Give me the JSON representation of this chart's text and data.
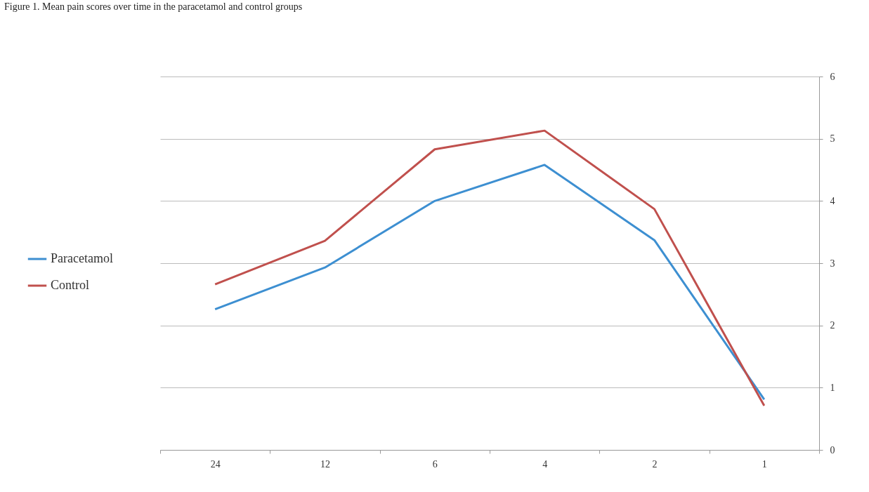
{
  "chart_data": {
    "type": "line",
    "title": "Figure 1. Mean pain scores over time in the paracetamol and control groups",
    "categories": [
      "24",
      "12",
      "6",
      "4",
      "2",
      "1"
    ],
    "series": [
      {
        "name": "Paracetamol",
        "color": "#3d8fd1",
        "values": [
          2.26,
          2.93,
          4.0,
          4.58,
          3.37,
          0.81
        ]
      },
      {
        "name": "Control",
        "color": "#c0504d",
        "values": [
          2.66,
          3.36,
          4.83,
          5.13,
          3.87,
          0.71
        ]
      }
    ],
    "ylim": [
      0,
      6
    ],
    "yticks": [
      0,
      1,
      2,
      3,
      4,
      5,
      6
    ],
    "grid": "y",
    "legend": "left",
    "marker": "none",
    "line_style": "solid"
  }
}
